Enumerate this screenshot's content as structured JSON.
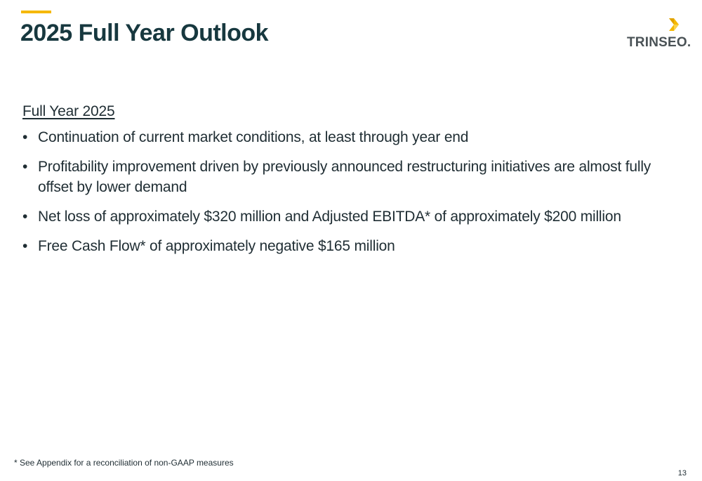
{
  "slide": {
    "title": "2025 Full Year Outlook",
    "accent_color": "#F5B800",
    "title_color": "#17383F"
  },
  "logo": {
    "text": "TRINSEO.",
    "icon": "trinseo-chevron-icon",
    "mark_colors": [
      "#F5B800",
      "#FAD24A"
    ]
  },
  "content": {
    "heading": "Full Year 2025",
    "bullets": [
      {
        "text": "Continuation of current market conditions, at least through year end"
      },
      {
        "text": "Profitability improvement driven by previously announced restructuring initiatives are almost fully offset by lower demand"
      },
      {
        "text": "Net loss of approximately $320 million and Adjusted EBITDA* of approximately $200 million"
      },
      {
        "text": "Free Cash Flow* of approximately negative $165 million"
      }
    ],
    "bullet_glyph": "•"
  },
  "footnote": "* See Appendix for a reconciliation of non-GAAP measures",
  "page_number": "13"
}
